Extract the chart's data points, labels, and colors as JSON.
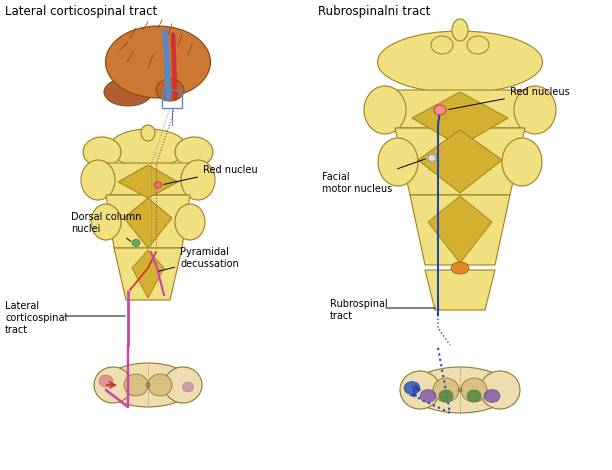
{
  "title_left": "Lateral corticospinal tract",
  "title_right": "Rubrospinalni tract",
  "bg_color": "#ffffff",
  "yw": "#f0e080",
  "yd": "#c8a030",
  "ym": "#d4b030",
  "out": "#a08020",
  "labels_left": {
    "red_nucleu": "Red nucleu",
    "dorsal_column": "Dorsal column\nnuclei",
    "lateral_tract": "Lateral\ncorticospinal\ntract",
    "pyramidal": "Pyramidal\ndecussation"
  },
  "labels_right": {
    "red_nucleus": "Red nucleus",
    "facial_motor": "Facial\nmotor nucleus",
    "rubrospinal": "Rubrospinal\ntract"
  }
}
